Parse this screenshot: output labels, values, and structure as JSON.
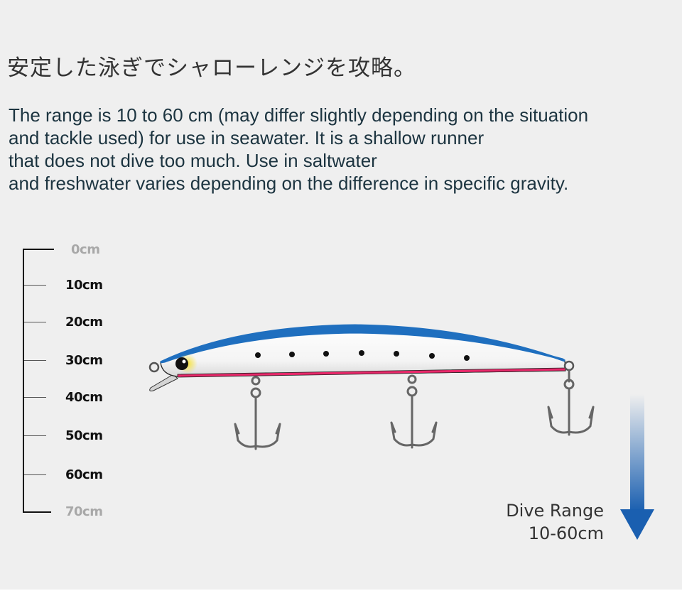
{
  "title": "安定した泳ぎでシャローレンジを攻略。",
  "description": [
    "The range is 10 to 60 cm (may differ slightly depending on the situation",
    "and tackle used) for use in seawater. It is a shallow runner",
    "that does not dive too much. Use in saltwater",
    "and freshwater varies depending on the difference in specific gravity."
  ],
  "depth_scale": {
    "labels": [
      "0cm",
      "10cm",
      "20cm",
      "30cm",
      "40cm",
      "50cm",
      "60cm",
      "70cm"
    ]
  },
  "dive_range": {
    "label": "Dive Range",
    "value": "10-60cm",
    "min_cm": 10,
    "max_cm": 60
  },
  "colors": {
    "back": "#1f6fbf",
    "belly": "#e8286a",
    "arrow": "#1a5fb0",
    "eye_glow": "#f6e23a"
  }
}
